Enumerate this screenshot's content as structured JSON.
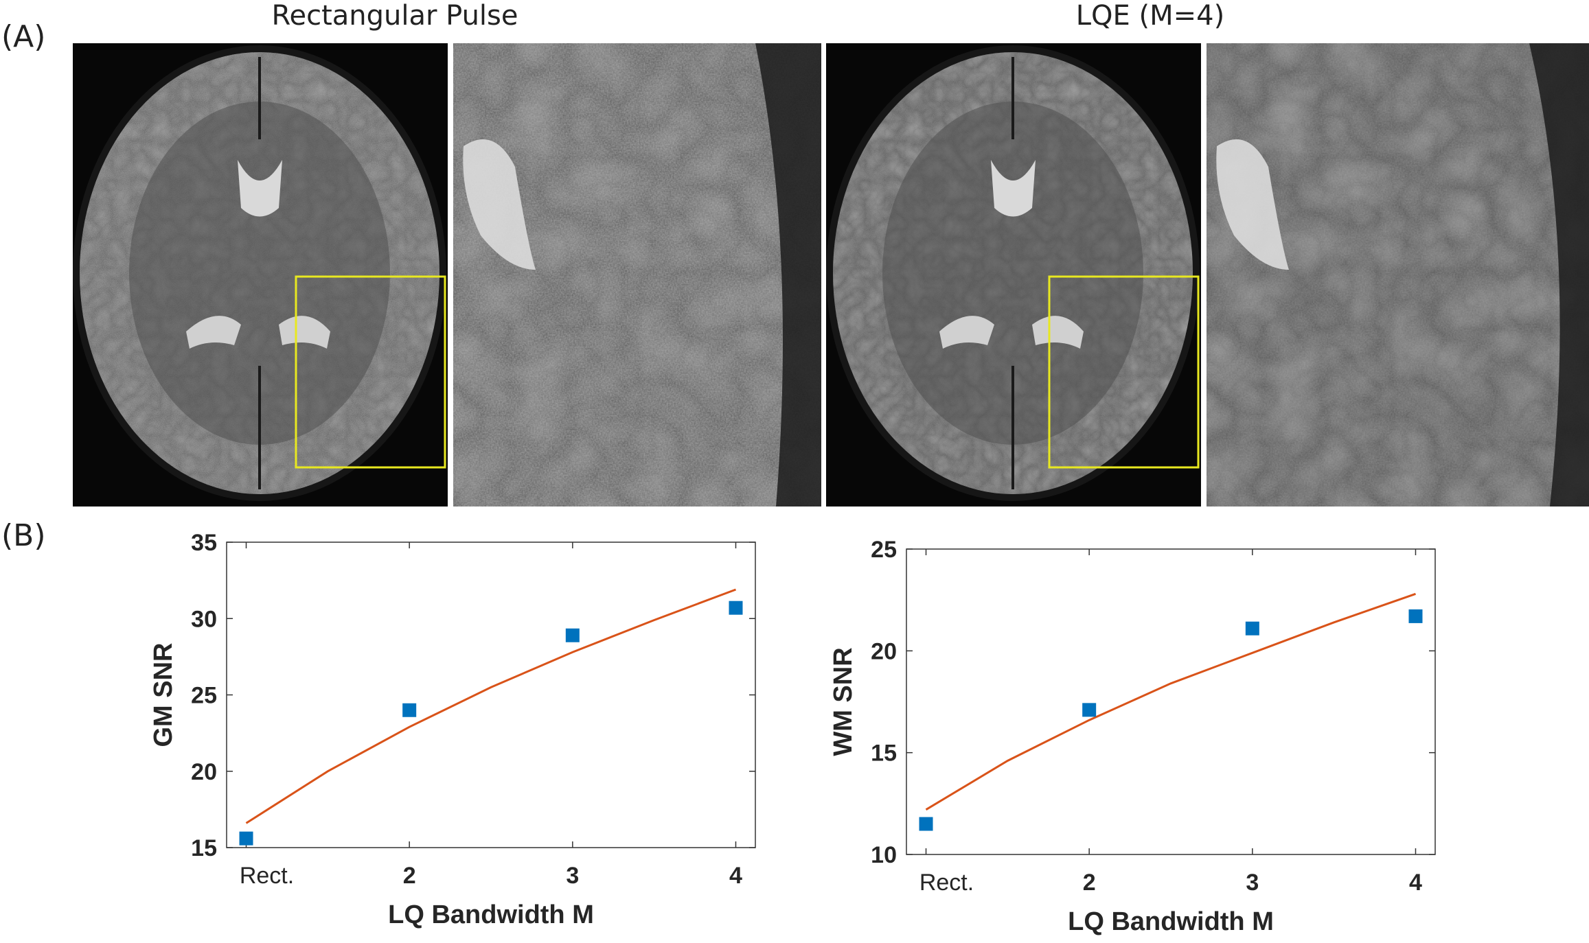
{
  "panel_a": {
    "label": "(A)",
    "titles": [
      "Rectangular Pulse",
      "LQE (M=4)"
    ]
  },
  "panel_b": {
    "label": "(B)"
  },
  "colors": {
    "marker": "#0072BD",
    "fit": "#D95319",
    "roi_box": "#e8e820"
  },
  "chart_data": [
    {
      "type": "scatter",
      "title": "",
      "xlabel": "LQ Bandwidth M",
      "ylabel": "GM SNR",
      "x": [
        1,
        2,
        3,
        4
      ],
      "xtick_labels": [
        "Rect.",
        "2",
        "3",
        "4"
      ],
      "ylim": [
        15,
        35
      ],
      "yticks": [
        15,
        20,
        25,
        30,
        35
      ],
      "xlim": [
        1,
        4
      ],
      "series": [
        {
          "kind": "markers",
          "values": [
            15.6,
            24.0,
            28.9,
            30.7
          ]
        },
        {
          "kind": "fit",
          "x": [
            1,
            1.5,
            2,
            2.5,
            3,
            3.5,
            4
          ],
          "values": [
            16.6,
            20.0,
            22.9,
            25.5,
            27.8,
            29.9,
            31.9
          ]
        }
      ],
      "grid": false
    },
    {
      "type": "scatter",
      "title": "",
      "xlabel": "LQ Bandwidth M",
      "ylabel": "WM SNR",
      "x": [
        1,
        2,
        3,
        4
      ],
      "xtick_labels": [
        "Rect.",
        "2",
        "3",
        "4"
      ],
      "ylim": [
        10,
        25
      ],
      "yticks": [
        10,
        15,
        20,
        25
      ],
      "xlim": [
        1,
        4
      ],
      "series": [
        {
          "kind": "markers",
          "values": [
            11.5,
            17.1,
            21.1,
            21.7
          ]
        },
        {
          "kind": "fit",
          "x": [
            1,
            1.5,
            2,
            2.5,
            3,
            3.5,
            4
          ],
          "values": [
            12.2,
            14.6,
            16.6,
            18.4,
            19.9,
            21.4,
            22.8
          ]
        }
      ],
      "grid": false
    }
  ]
}
